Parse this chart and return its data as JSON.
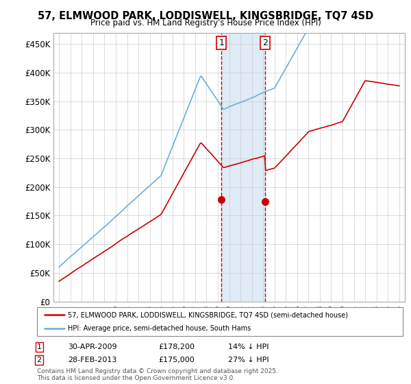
{
  "title_line1": "57, ELMWOOD PARK, LODDISWELL, KINGSBRIDGE, TQ7 4SD",
  "title_line2": "Price paid vs. HM Land Registry's House Price Index (HPI)",
  "ylim": [
    0,
    470000
  ],
  "yticks": [
    0,
    50000,
    100000,
    150000,
    200000,
    250000,
    300000,
    350000,
    400000,
    450000
  ],
  "ytick_labels": [
    "£0",
    "£50K",
    "£100K",
    "£150K",
    "£200K",
    "£250K",
    "£300K",
    "£350K",
    "£400K",
    "£450K"
  ],
  "hpi_color": "#6baed6",
  "price_color": "#cc0000",
  "shaded_region": [
    2009.33,
    2013.17
  ],
  "transaction1": {
    "date": "30-APR-2009",
    "price": 178200,
    "x": 2009.33,
    "label": "1",
    "pct": "14%",
    "dir": "↓"
  },
  "transaction2": {
    "date": "28-FEB-2013",
    "price": 175000,
    "x": 2013.17,
    "label": "2",
    "pct": "27%",
    "dir": "↓"
  },
  "legend_line1": "57, ELMWOOD PARK, LODDISWELL, KINGSBRIDGE, TQ7 4SD (semi-detached house)",
  "legend_line2": "HPI: Average price, semi-detached house, South Hams",
  "footnote1": "Contains HM Land Registry data © Crown copyright and database right 2025.",
  "footnote2": "This data is licensed under the Open Government Licence v3.0.",
  "background_color": "#ffffff",
  "grid_color": "#cccccc"
}
